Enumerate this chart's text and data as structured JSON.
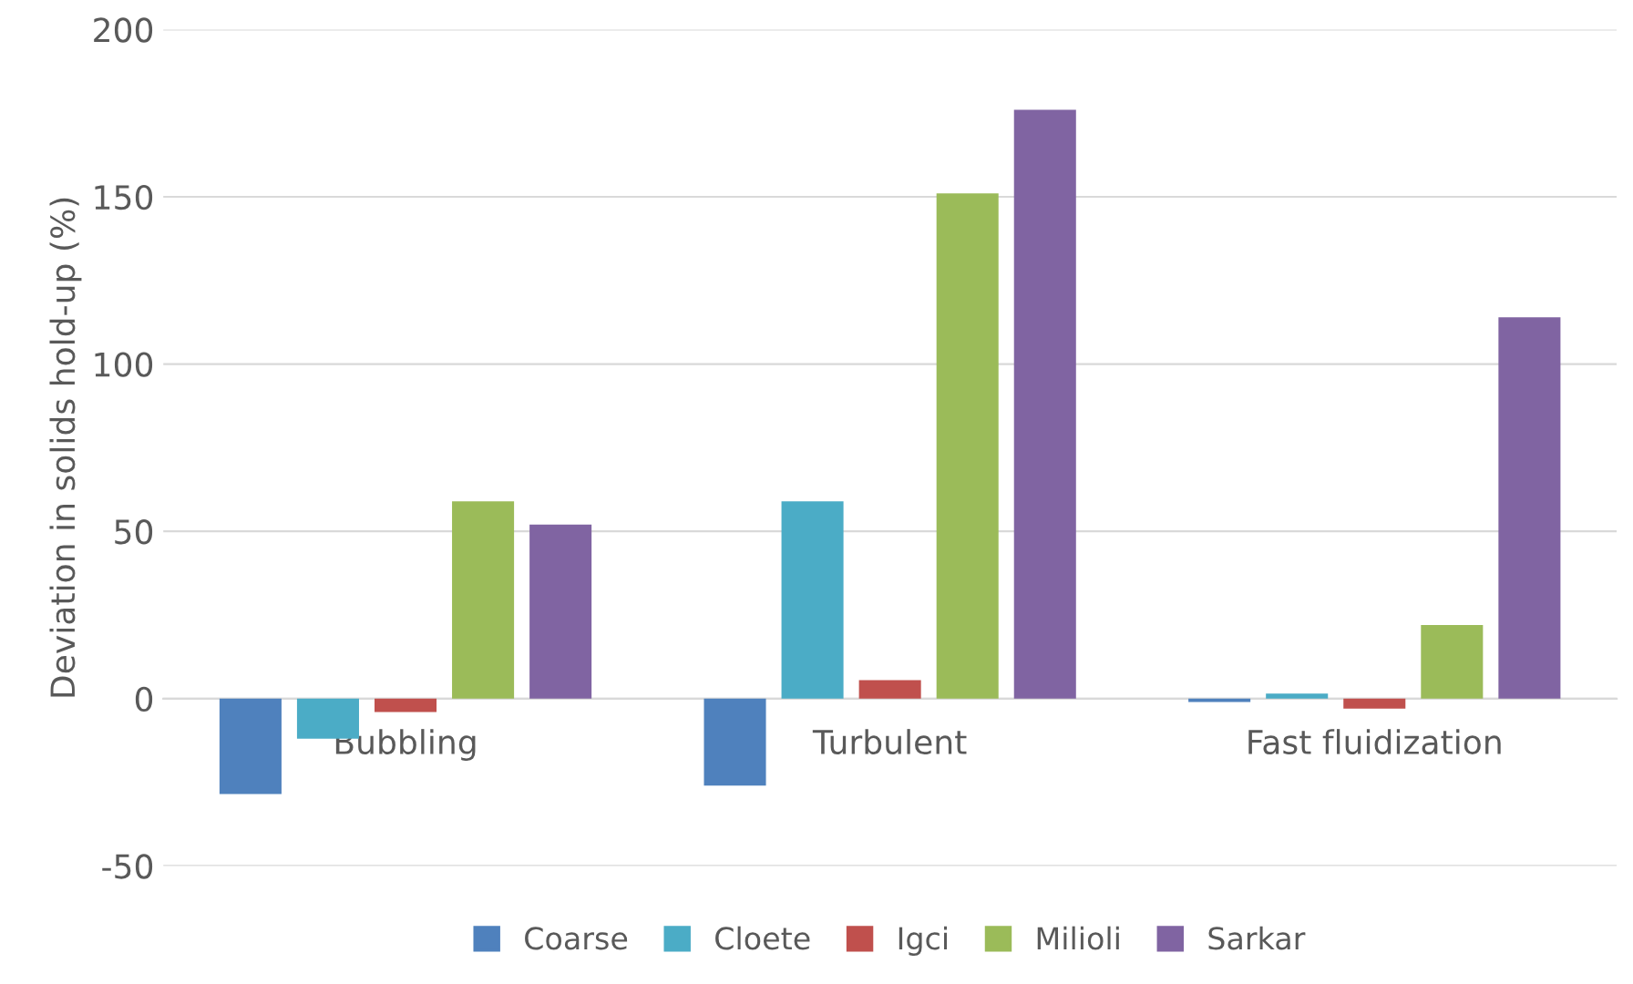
{
  "chart_data": {
    "type": "bar",
    "ylabel": "Deviation in solids hold-up (%)",
    "categories": [
      "Bubbling",
      "Turbulent",
      "Fast fluidization"
    ],
    "series": [
      {
        "name": "Coarse",
        "color": "#4f81bd",
        "values": [
          -28.5,
          -26,
          -1
        ]
      },
      {
        "name": "Cloete",
        "color": "#4bacc6",
        "values": [
          -12,
          59,
          1.5
        ]
      },
      {
        "name": "Igci",
        "color": "#c0504d",
        "values": [
          -4,
          5.5,
          -3
        ]
      },
      {
        "name": "Milioli",
        "color": "#9bbb59",
        "values": [
          59,
          151,
          22
        ]
      },
      {
        "name": "Sarkar",
        "color": "#8064a2",
        "values": [
          52,
          176,
          114
        ]
      }
    ],
    "ylim": [
      -50,
      200
    ],
    "yticks": [
      -50,
      0,
      50,
      100,
      150,
      200
    ],
    "grid": "y",
    "legend": "bottom"
  }
}
